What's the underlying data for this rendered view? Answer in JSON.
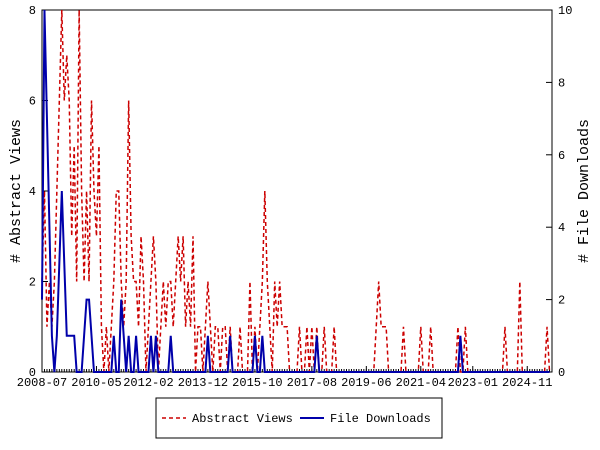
{
  "chart_data": {
    "type": "line",
    "y_label": "# Abstract Views",
    "y2_label": "# File Downloads",
    "x": [
      "2008-07",
      "2008-08",
      "2008-09",
      "2008-10",
      "2008-11",
      "2008-12",
      "2009-01",
      "2009-02",
      "2009-03",
      "2009-04",
      "2009-05",
      "2009-06",
      "2009-07",
      "2009-08",
      "2009-09",
      "2009-10",
      "2009-11",
      "2009-12",
      "2010-01",
      "2010-02",
      "2010-03",
      "2010-04",
      "2010-05",
      "2010-06",
      "2010-07",
      "2010-08",
      "2010-09",
      "2010-10",
      "2010-11",
      "2010-12",
      "2011-01",
      "2011-02",
      "2011-03",
      "2011-04",
      "2011-05",
      "2011-06",
      "2011-07",
      "2011-08",
      "2011-09",
      "2011-10",
      "2011-11",
      "2011-12",
      "2012-01",
      "2012-02",
      "2012-03",
      "2012-04",
      "2012-05",
      "2012-06",
      "2012-07",
      "2012-08",
      "2012-09",
      "2012-10",
      "2012-11",
      "2012-12",
      "2013-01",
      "2013-02",
      "2013-03",
      "2013-04",
      "2013-05",
      "2013-06",
      "2013-07",
      "2013-08",
      "2013-09",
      "2013-10",
      "2013-11",
      "2013-12",
      "2014-01",
      "2014-02",
      "2014-03",
      "2014-04",
      "2014-05",
      "2014-06",
      "2014-07",
      "2014-08",
      "2014-09",
      "2014-10",
      "2014-11",
      "2014-12",
      "2015-01",
      "2015-02",
      "2015-03",
      "2015-04",
      "2015-05",
      "2015-06",
      "2015-07",
      "2015-08",
      "2015-09",
      "2015-10",
      "2015-11",
      "2015-12",
      "2016-01",
      "2016-02",
      "2016-03",
      "2016-04",
      "2016-05",
      "2016-06",
      "2016-07",
      "2016-08",
      "2016-09",
      "2016-10",
      "2016-11",
      "2016-12",
      "2017-01",
      "2017-02",
      "2017-03",
      "2017-04",
      "2017-05",
      "2017-06",
      "2017-07",
      "2017-08",
      "2017-09",
      "2017-10",
      "2017-11",
      "2017-12",
      "2018-01",
      "2018-02",
      "2018-03",
      "2018-04",
      "2018-05",
      "2018-06",
      "2018-07",
      "2018-08",
      "2018-09",
      "2018-10",
      "2018-11",
      "2018-12",
      "2019-01",
      "2019-02",
      "2019-03",
      "2019-04",
      "2019-05",
      "2019-06",
      "2019-07",
      "2019-08",
      "2019-09",
      "2019-10",
      "2019-11",
      "2019-12",
      "2020-01",
      "2020-02",
      "2020-03",
      "2020-04",
      "2020-05",
      "2020-06",
      "2020-07",
      "2020-08",
      "2020-09",
      "2020-10",
      "2020-11",
      "2020-12",
      "2021-01",
      "2021-02",
      "2021-03",
      "2021-04",
      "2021-05",
      "2021-06",
      "2021-07",
      "2021-08",
      "2021-09",
      "2021-10",
      "2021-11",
      "2021-12",
      "2022-01",
      "2022-02",
      "2022-03",
      "2022-04",
      "2022-05",
      "2022-06",
      "2022-07",
      "2022-08",
      "2022-09",
      "2022-10",
      "2022-11",
      "2022-12",
      "2023-01",
      "2023-02",
      "2023-03",
      "2023-04",
      "2023-05",
      "2023-06",
      "2023-07",
      "2023-08",
      "2023-09",
      "2023-10",
      "2023-11",
      "2023-12",
      "2024-01",
      "2024-02",
      "2024-03",
      "2024-04",
      "2024-05",
      "2024-06",
      "2024-07",
      "2024-08",
      "2024-09",
      "2024-10",
      "2024-11",
      "2024-12",
      "2025-01",
      "2025-02",
      "2025-03",
      "2025-04",
      "2025-05",
      "2025-06",
      "2025-07",
      "2025-08"
    ],
    "xticks": [
      "2008-07",
      "2010-05",
      "2012-02",
      "2013-12",
      "2015-10",
      "2017-08",
      "2019-06",
      "2021-04",
      "2023-01",
      "2024-11"
    ],
    "ylim": [
      0,
      8
    ],
    "yticks": [
      0,
      2,
      4,
      6,
      8
    ],
    "y2lim": [
      0,
      10
    ],
    "y2ticks": [
      0,
      2,
      4,
      6,
      8,
      10
    ],
    "grid": false,
    "legend": "bottom",
    "series": [
      {
        "name": "Abstract Views",
        "color": "#cc0000",
        "dash": true,
        "values": [
          2,
          4,
          1,
          2,
          1,
          2,
          4,
          6,
          8,
          6,
          7,
          6,
          3,
          5,
          2,
          8,
          4,
          2,
          4,
          2,
          6,
          4,
          3,
          5,
          1,
          0,
          1,
          0,
          1,
          2,
          4,
          4,
          2,
          1,
          2,
          6,
          3,
          2,
          2,
          1,
          3,
          2,
          0,
          1,
          2,
          3,
          2,
          0,
          1,
          2,
          1,
          2,
          2,
          1,
          2,
          3,
          2,
          3,
          1,
          2,
          1,
          3,
          0,
          1,
          1,
          0,
          1,
          2,
          1,
          0,
          1,
          1,
          0,
          1,
          1,
          0,
          1,
          0,
          0,
          0,
          1,
          0,
          0,
          0,
          2,
          0,
          1,
          0,
          1,
          2,
          4,
          2,
          1,
          0,
          2,
          1,
          2,
          1,
          1,
          1,
          0,
          0,
          0,
          0,
          1,
          0,
          0,
          1,
          0,
          1,
          0,
          1,
          0,
          0,
          1,
          0,
          0,
          0,
          1,
          0,
          0,
          0,
          0,
          0,
          0,
          0,
          0,
          0,
          0,
          0,
          0,
          0,
          0,
          0,
          0,
          1,
          2,
          1,
          1,
          1,
          0,
          0,
          0,
          0,
          0,
          0,
          1,
          0,
          0,
          0,
          0,
          0,
          0,
          1,
          0,
          0,
          0,
          1,
          0,
          0,
          0,
          0,
          0,
          0,
          0,
          0,
          0,
          0,
          1,
          0,
          0,
          1,
          0,
          0,
          0,
          0,
          0,
          0,
          0,
          0,
          0,
          0,
          0,
          0,
          0,
          0,
          0,
          1,
          0,
          0,
          0,
          0,
          0,
          2,
          0,
          0,
          0,
          0,
          0,
          0,
          0,
          0,
          0,
          0,
          1,
          0
        ]
      },
      {
        "name": "File Downloads",
        "color": "#0000aa",
        "dash": false,
        "axis": "y2",
        "values": [
          2,
          10,
          7,
          4,
          1,
          0,
          1,
          3,
          5,
          3,
          1,
          1,
          1,
          1,
          0,
          0,
          0,
          1,
          2,
          2,
          1,
          0,
          0,
          0,
          0,
          0,
          0,
          0,
          0,
          1,
          0,
          0,
          2,
          1,
          0,
          1,
          0,
          0,
          1,
          0,
          0,
          0,
          0,
          0,
          1,
          0,
          1,
          0,
          0,
          0,
          0,
          0,
          1,
          0,
          0,
          0,
          0,
          0,
          0,
          0,
          0,
          0,
          0,
          0,
          0,
          0,
          0,
          1,
          0,
          0,
          0,
          0,
          0,
          0,
          0,
          0,
          1,
          0,
          0,
          0,
          0,
          0,
          0,
          0,
          0,
          0,
          1,
          0,
          0,
          1,
          0,
          0,
          0,
          0,
          0,
          0,
          0,
          0,
          0,
          0,
          0,
          0,
          0,
          0,
          0,
          0,
          0,
          0,
          0,
          0,
          0,
          1,
          0,
          0,
          0,
          0,
          0,
          0,
          0,
          0,
          0,
          0,
          0,
          0,
          0,
          0,
          0,
          0,
          0,
          0,
          0,
          0,
          0,
          0,
          0,
          0,
          0,
          0,
          0,
          0,
          0,
          0,
          0,
          0,
          0,
          0,
          0,
          0,
          0,
          0,
          0,
          0,
          0,
          0,
          0,
          0,
          0,
          0,
          0,
          0,
          0,
          0,
          0,
          0,
          0,
          0,
          0,
          0,
          0,
          1,
          0,
          0,
          0,
          0,
          0,
          0,
          0,
          0,
          0,
          0,
          0,
          0,
          0,
          0,
          0,
          0,
          0,
          0,
          0,
          0,
          0,
          0,
          0,
          0,
          0,
          0,
          0,
          0,
          0,
          0,
          0,
          0,
          0,
          0,
          0,
          0
        ]
      }
    ]
  }
}
